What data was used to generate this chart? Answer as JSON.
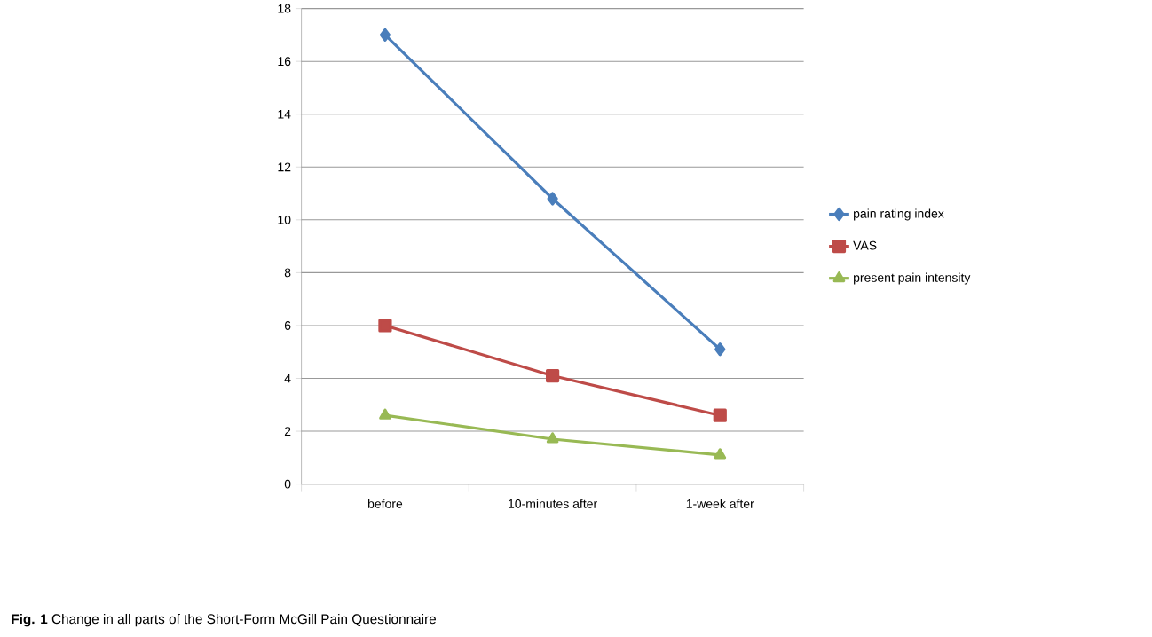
{
  "chart_data": {
    "type": "line",
    "categories": [
      "before",
      "10-minutes after",
      "1-week after"
    ],
    "series": [
      {
        "name": "pain rating index",
        "color": "#4a7ebb",
        "marker": "diamond",
        "values": [
          17,
          10.8,
          5.1
        ]
      },
      {
        "name": "VAS",
        "color": "#be4b48",
        "marker": "square",
        "values": [
          6.0,
          4.1,
          2.6
        ]
      },
      {
        "name": "present pain intensity",
        "color": "#98b954",
        "marker": "triangle",
        "values": [
          2.6,
          1.7,
          1.1
        ]
      }
    ],
    "ylim": [
      0,
      18
    ],
    "yticks": [
      0,
      2,
      4,
      6,
      8,
      10,
      12,
      14,
      16,
      18
    ],
    "grid": "y",
    "legend": "right",
    "line_style": "solid",
    "annotations": [
      "**Fig. 1** Change in all parts of the Short-Form McGill Pain Questionnaire"
    ]
  }
}
